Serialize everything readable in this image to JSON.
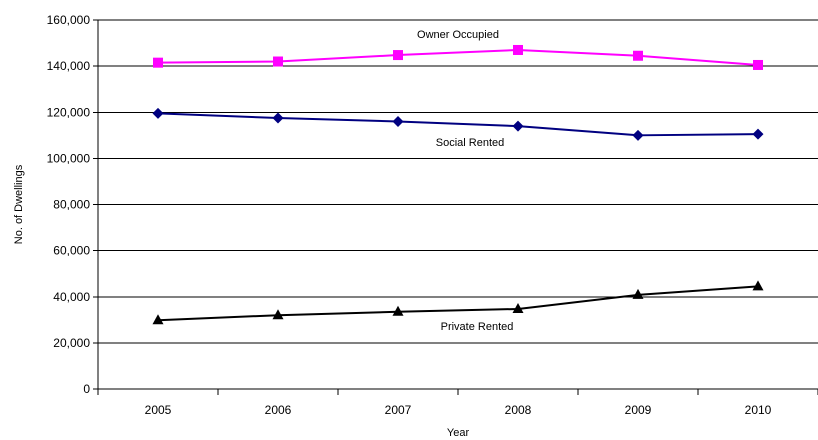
{
  "chart_data": {
    "type": "line",
    "title": "",
    "xlabel": "Year",
    "ylabel": "No. of Dwellings",
    "categories": [
      "2005",
      "2006",
      "2007",
      "2008",
      "2009",
      "2010"
    ],
    "ylim": [
      0,
      160000
    ],
    "y_ticks": [
      0,
      20000,
      40000,
      60000,
      80000,
      100000,
      120000,
      140000,
      160000
    ],
    "y_tick_labels": [
      "0",
      "20,000",
      "40,000",
      "60,000",
      "80,000",
      "100,000",
      "120,000",
      "140,000",
      "160,000"
    ],
    "grid": true,
    "legend": "none (series labelled directly on the lines)",
    "series": [
      {
        "name": "Owner Occupied",
        "values": [
          141500,
          142000,
          144800,
          147000,
          144500,
          140500
        ],
        "color": "#ff00ff",
        "marker": "square"
      },
      {
        "name": "Social Rented",
        "values": [
          119500,
          117500,
          116000,
          114000,
          110000,
          110500
        ],
        "color": "#000080",
        "marker": "diamond"
      },
      {
        "name": "Private Rented",
        "values": [
          29800,
          32000,
          33500,
          34700,
          40800,
          44500
        ],
        "color": "#000000",
        "marker": "triangle"
      }
    ]
  }
}
